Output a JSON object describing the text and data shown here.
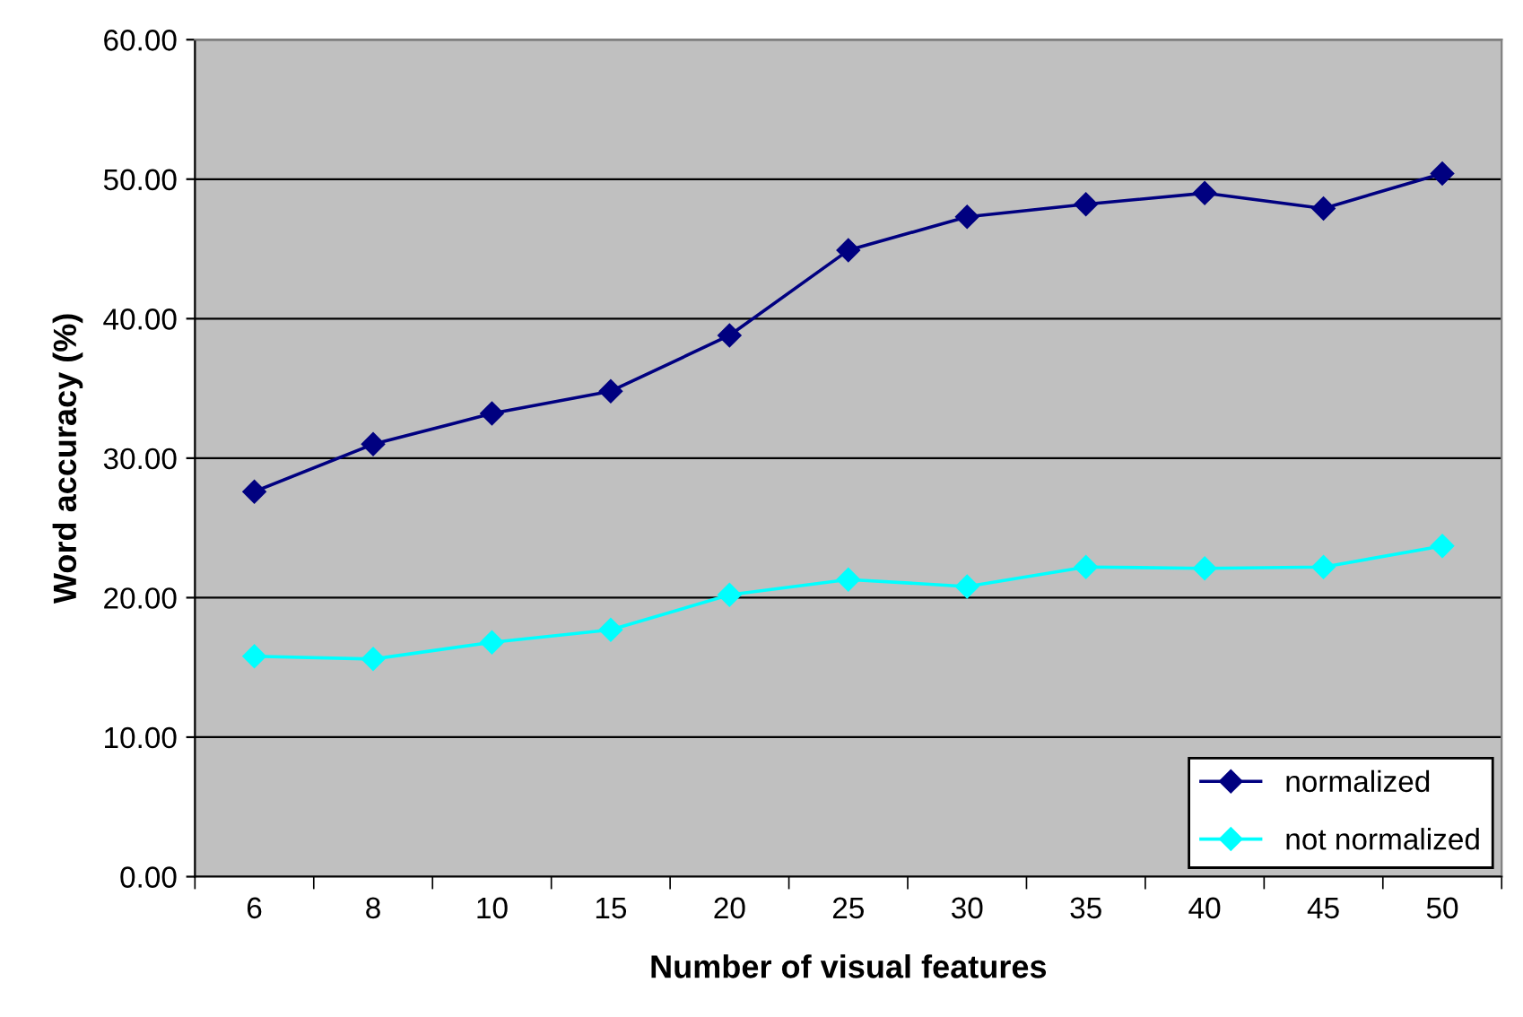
{
  "chart_data": {
    "type": "line",
    "xlabel": "Number of visual features",
    "ylabel": "Word accuracy (%)",
    "categories": [
      "6",
      "8",
      "10",
      "15",
      "20",
      "25",
      "30",
      "35",
      "40",
      "45",
      "50"
    ],
    "series": [
      {
        "name": "normalized",
        "color": "#000080",
        "values": [
          27.6,
          31.0,
          33.2,
          34.8,
          38.8,
          44.9,
          47.3,
          48.2,
          49.0,
          47.9,
          50.4
        ]
      },
      {
        "name": "not normalized",
        "color": "#00ffff",
        "values": [
          15.8,
          15.6,
          16.8,
          17.7,
          20.2,
          21.3,
          20.8,
          22.2,
          22.1,
          22.2,
          23.7
        ]
      }
    ],
    "ylim": [
      0,
      60
    ],
    "yticks": [
      {
        "value": 0,
        "label": "0.00"
      },
      {
        "value": 10,
        "label": "10.00"
      },
      {
        "value": 20,
        "label": "20.00"
      },
      {
        "value": 30,
        "label": "30.00"
      },
      {
        "value": 40,
        "label": "40.00"
      },
      {
        "value": 50,
        "label": "50.00"
      },
      {
        "value": 60,
        "label": "60.00"
      }
    ],
    "grid": "y",
    "legend": "bottom right",
    "marker": "diamond",
    "line_style": "solid"
  }
}
